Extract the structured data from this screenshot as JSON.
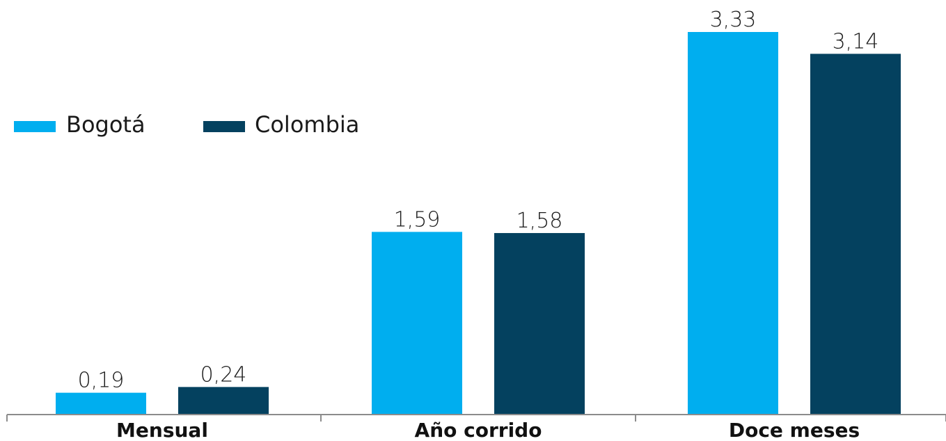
{
  "chart_data": {
    "type": "bar",
    "categories": [
      "Mensual",
      "Año corrido",
      "Doce meses"
    ],
    "series": [
      {
        "name": "Bogotá",
        "color": "#00AEEF",
        "values": [
          0.19,
          1.59,
          3.33
        ],
        "labels": [
          "0,19",
          "1,59",
          "3,33"
        ]
      },
      {
        "name": "Colombia",
        "color": "#04415F",
        "values": [
          0.24,
          1.58,
          3.14
        ],
        "labels": [
          "0,24",
          "1,58",
          "3,14"
        ]
      }
    ],
    "ylim": [
      0,
      3.33
    ],
    "legend_position": "left",
    "grid": false
  }
}
